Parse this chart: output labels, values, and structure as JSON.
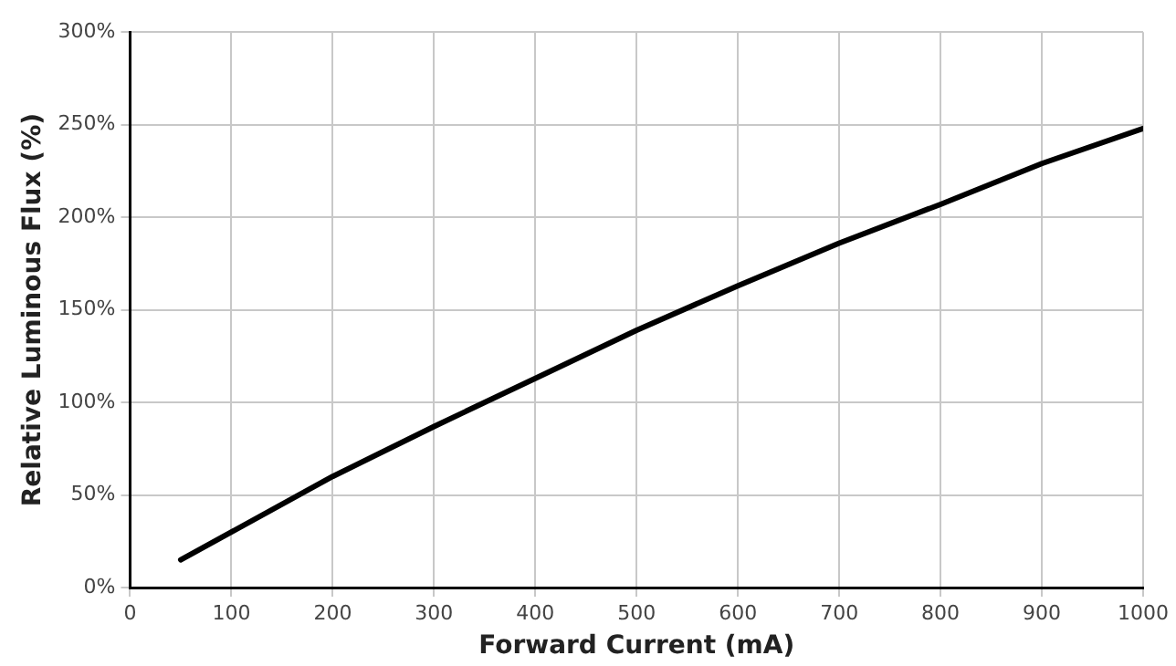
{
  "chart_data": {
    "type": "line",
    "xlabel": "Forward Current (mA)",
    "ylabel": "Relative Luminous Flux (%)",
    "x": [
      50,
      100,
      200,
      300,
      400,
      500,
      600,
      700,
      800,
      900,
      1000
    ],
    "series": [
      {
        "color": "#000000",
        "values": [
          15,
          30,
          60,
          87,
          113,
          139,
          163,
          186,
          207,
          229,
          248
        ]
      }
    ],
    "xlim": [
      0,
      1000
    ],
    "xticks": [
      0,
      100,
      200,
      300,
      400,
      500,
      600,
      700,
      800,
      900,
      1000
    ],
    "ylim": [
      0,
      300
    ],
    "yticks": [
      {
        "value": 0,
        "label": "0%"
      },
      {
        "value": 50,
        "label": "50%"
      },
      {
        "value": 100,
        "label": "100%"
      },
      {
        "value": 150,
        "label": "150%"
      },
      {
        "value": 200,
        "label": "200%"
      },
      {
        "value": 250,
        "label": "250%"
      },
      {
        "value": 300,
        "label": "300%"
      }
    ],
    "grid": true,
    "legend": false,
    "marker": "none",
    "line_style": "solid"
  }
}
